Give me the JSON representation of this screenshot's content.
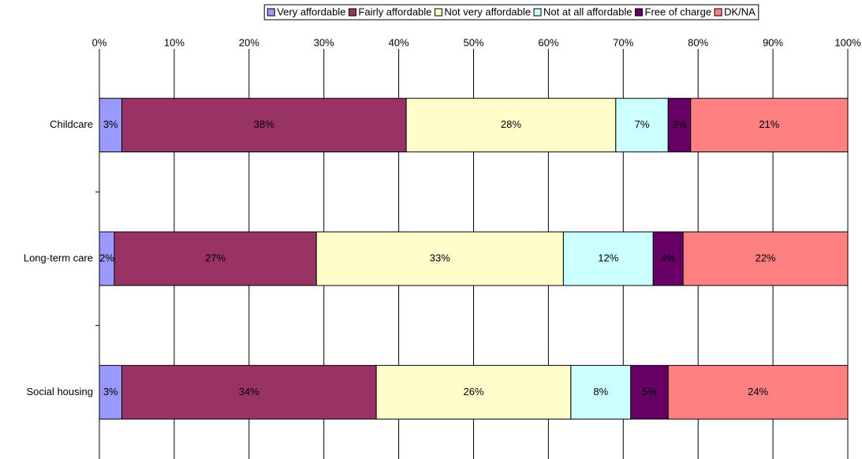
{
  "chart_data": {
    "type": "bar",
    "orientation": "horizontal",
    "stacked": true,
    "categories": [
      "Childcare",
      "Long-term care",
      "Social housing"
    ],
    "series": [
      {
        "name": "Very affordable",
        "color": "#9999ff",
        "values": [
          3,
          2,
          3
        ],
        "value_labels": [
          "3%",
          "2%",
          "3%"
        ]
      },
      {
        "name": "Fairly affordable",
        "color": "#993366",
        "values": [
          38,
          27,
          34
        ],
        "value_labels": [
          "38%",
          "27%",
          "34%"
        ]
      },
      {
        "name": "Not very affordable",
        "color": "#ffffcc",
        "values": [
          28,
          33,
          26
        ],
        "value_labels": [
          "28%",
          "33%",
          "26%"
        ]
      },
      {
        "name": "Not at all affordable",
        "color": "#ccffff",
        "values": [
          7,
          12,
          8
        ],
        "value_labels": [
          "7%",
          "12%",
          "8%"
        ]
      },
      {
        "name": "Free of charge",
        "color": "#660066",
        "values": [
          3,
          4,
          5
        ],
        "value_labels": [
          "3%",
          "4%",
          "5%"
        ]
      },
      {
        "name": "DK/NA",
        "color": "#ff8080",
        "values": [
          21,
          22,
          24
        ],
        "value_labels": [
          "21%",
          "22%",
          "24%"
        ]
      }
    ],
    "xlim": [
      0,
      100
    ],
    "xticks": [
      {
        "value": 0,
        "label": "0%"
      },
      {
        "value": 10,
        "label": "10%"
      },
      {
        "value": 20,
        "label": "20%"
      },
      {
        "value": 30,
        "label": "30%"
      },
      {
        "value": 40,
        "label": "40%"
      },
      {
        "value": 50,
        "label": "50%"
      },
      {
        "value": 60,
        "label": "60%"
      },
      {
        "value": 70,
        "label": "70%"
      },
      {
        "value": 80,
        "label": "80%"
      },
      {
        "value": 90,
        "label": "90%"
      },
      {
        "value": 100,
        "label": "100%"
      }
    ],
    "grid": true,
    "legend": "top"
  }
}
